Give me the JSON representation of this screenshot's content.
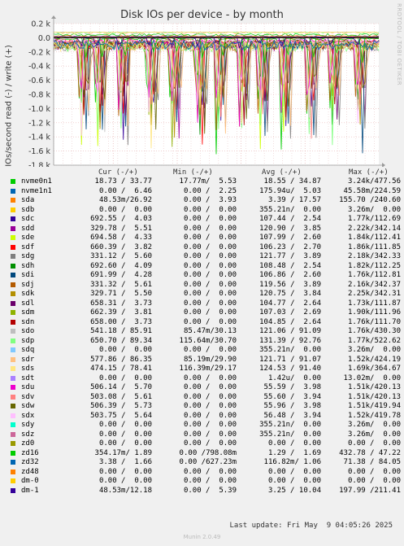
{
  "chart_data": {
    "type": "line",
    "title": "Disk IOs per device - by month",
    "ylabel": "IOs/second read (-) / write (+)",
    "side_text": "RRDTOOL / TOBI OETIKER",
    "ylim": [
      -1.8,
      0.2
    ],
    "y_ticks": [
      "0.2 k",
      "0.0",
      "-0.2 k",
      "-0.4 k",
      "-0.6 k",
      "-0.8 k",
      "-1.0 k",
      "-1.2 k",
      "-1.4 k",
      "-1.6 k",
      "-1.8 k"
    ],
    "y_tick_values": [
      0.2,
      0.0,
      -0.2,
      -0.4,
      -0.6,
      -0.8,
      -1.0,
      -1.2,
      -1.4,
      -1.6,
      -1.8
    ],
    "x_labels": [
      "Week 15",
      "Week 16",
      "Week 17",
      "Week 18",
      "Week 19"
    ],
    "x_positions": [
      0.086,
      0.283,
      0.48,
      0.676,
      0.873
    ],
    "columns": [
      "Cur (-/+)",
      "Min (-/+)",
      "Avg (-/+)",
      "Max (-/+)"
    ],
    "series": [
      {
        "name": "nvme0n1",
        "color": "#00cc00",
        "cur": "18.73 / 33.77",
        "min": "17.77m/  5.53",
        "avg": "18.55 / 34.87",
        "max": "3.24k/477.56"
      },
      {
        "name": "nvme1n1",
        "color": "#0066b3",
        "cur": " 0.00 /  6.46",
        "min": " 0.00 /  2.25",
        "avg": "175.94u/  5.03",
        "max": "45.58m/224.59"
      },
      {
        "name": "sda",
        "color": "#ff8000",
        "cur": "48.53m/26.92",
        "min": " 0.00 /  3.93",
        "avg": " 3.39 / 17.57",
        "max": "155.70 /240.60"
      },
      {
        "name": "sdb",
        "color": "#ffcc00",
        "cur": " 0.00 /  0.00",
        "min": " 0.00 /  0.00",
        "avg": "355.21n/  0.00",
        "max": "3.26m/  0.00"
      },
      {
        "name": "sdc",
        "color": "#330099",
        "cur": "692.55 /  4.03",
        "min": " 0.00 /  0.00",
        "avg": "107.44 /  2.54",
        "max": "1.77k/112.69"
      },
      {
        "name": "sdd",
        "color": "#990099",
        "cur": "329.78 /  5.51",
        "min": " 0.00 /  0.00",
        "avg": "120.90 /  3.85",
        "max": "2.22k/342.14"
      },
      {
        "name": "sde",
        "color": "#ccff00",
        "cur": "694.58 /  4.33",
        "min": " 0.00 /  0.00",
        "avg": "107.99 /  2.60",
        "max": "1.84k/112.41"
      },
      {
        "name": "sdf",
        "color": "#ff0000",
        "cur": "660.39 /  3.82",
        "min": " 0.00 /  0.00",
        "avg": "106.23 /  2.70",
        "max": "1.86k/111.85"
      },
      {
        "name": "sdg",
        "color": "#808080",
        "cur": "331.12 /  5.60",
        "min": " 0.00 /  0.00",
        "avg": "121.77 /  3.89",
        "max": "2.18k/342.33"
      },
      {
        "name": "sdh",
        "color": "#008f00",
        "cur": "692.60 /  4.09",
        "min": " 0.00 /  0.00",
        "avg": "108.48 /  2.54",
        "max": "1.82k/112.25"
      },
      {
        "name": "sdi",
        "color": "#00487d",
        "cur": "691.99 /  4.28",
        "min": " 0.00 /  0.00",
        "avg": "106.86 /  2.60",
        "max": "1.76k/112.81"
      },
      {
        "name": "sdj",
        "color": "#b35a00",
        "cur": "331.32 /  5.61",
        "min": " 0.00 /  0.00",
        "avg": "119.56 /  3.89",
        "max": "2.16k/342.37"
      },
      {
        "name": "sdk",
        "color": "#b38f00",
        "cur": "329.71 /  5.50",
        "min": " 0.00 /  0.00",
        "avg": "120.75 /  3.84",
        "max": "2.25k/342.31"
      },
      {
        "name": "sdl",
        "color": "#6b006b",
        "cur": "658.31 /  3.73",
        "min": " 0.00 /  0.00",
        "avg": "104.77 /  2.64",
        "max": "1.73k/111.87"
      },
      {
        "name": "sdm",
        "color": "#8fb300",
        "cur": "662.39 /  3.81",
        "min": " 0.00 /  0.00",
        "avg": "107.03 /  2.69",
        "max": "1.90k/111.96"
      },
      {
        "name": "sdn",
        "color": "#b30000",
        "cur": "658.00 /  3.73",
        "min": " 0.00 /  0.00",
        "avg": "104.85 /  2.64",
        "max": "1.76k/111.70"
      },
      {
        "name": "sdo",
        "color": "#bebebe",
        "cur": "541.18 / 85.91",
        "min": "85.47m/30.13",
        "avg": "121.06 / 91.09",
        "max": "1.76k/430.30"
      },
      {
        "name": "sdp",
        "color": "#80ff80",
        "cur": "650.70 / 89.34",
        "min": "115.64m/30.70",
        "avg": "131.39 / 92.76",
        "max": "1.77k/522.62"
      },
      {
        "name": "sdq",
        "color": "#80c9ff",
        "cur": " 0.00 /  0.00",
        "min": " 0.00 /  0.00",
        "avg": "355.21n/  0.00",
        "max": "3.26m/  0.00"
      },
      {
        "name": "sdr",
        "color": "#ffc080",
        "cur": "577.86 / 86.35",
        "min": "85.19m/29.90",
        "avg": "121.71 / 91.07",
        "max": "1.52k/424.19"
      },
      {
        "name": "sds",
        "color": "#ffe680",
        "cur": "474.15 / 78.41",
        "min": "116.39m/29.17",
        "avg": "124.53 / 91.40",
        "max": "1.69k/364.67"
      },
      {
        "name": "sdt",
        "color": "#aa80ff",
        "cur": " 0.00 /  0.00",
        "min": " 0.00 /  0.00",
        "avg": " 1.42u/  0.00",
        "max": "13.02m/  0.00"
      },
      {
        "name": "sdu",
        "color": "#ee00cc",
        "cur": "506.14 /  5.70",
        "min": " 0.00 /  0.00",
        "avg": "55.59 /  3.98",
        "max": "1.51k/420.13"
      },
      {
        "name": "sdv",
        "color": "#ff8080",
        "cur": "503.08 /  5.61",
        "min": " 0.00 /  0.00",
        "avg": "55.60 /  3.94",
        "max": "1.51k/420.13"
      },
      {
        "name": "sdw",
        "color": "#666600",
        "cur": "506.39 /  5.73",
        "min": " 0.00 /  0.00",
        "avg": "55.96 /  3.98",
        "max": "1.51k/419.94"
      },
      {
        "name": "sdx",
        "color": "#ffbfff",
        "cur": "503.75 /  5.64",
        "min": " 0.00 /  0.00",
        "avg": "56.48 /  3.94",
        "max": "1.52k/419.78"
      },
      {
        "name": "sdy",
        "color": "#00ffcc",
        "cur": " 0.00 /  0.00",
        "min": " 0.00 /  0.00",
        "avg": "355.21n/  0.00",
        "max": "3.26m/  0.00"
      },
      {
        "name": "sdz",
        "color": "#cc6699",
        "cur": " 0.00 /  0.00",
        "min": " 0.00 /  0.00",
        "avg": "355.21n/  0.00",
        "max": "3.26m/  0.00"
      },
      {
        "name": "zd0",
        "color": "#999900",
        "cur": " 0.00 /  0.00",
        "min": " 0.00 /  0.00",
        "avg": " 0.00 /  0.00",
        "max": " 0.00 /  0.00"
      },
      {
        "name": "zd16",
        "color": "#00cc00",
        "cur": "354.17m/ 1.89",
        "min": " 0.00 /798.08m",
        "avg": " 1.29 /  1.69",
        "max": "432.78 / 47.22"
      },
      {
        "name": "zd32",
        "color": "#0066b3",
        "cur": " 3.38 /  1.66",
        "min": " 0.00 /627.23m",
        "avg": "116.82m/ 1.06",
        "max": "71.38 / 84.05"
      },
      {
        "name": "zd48",
        "color": "#ff8000",
        "cur": " 0.00 /  0.00",
        "min": " 0.00 /  0.00",
        "avg": " 0.00 /  0.00",
        "max": " 0.00 /  0.00"
      },
      {
        "name": "dm-0",
        "color": "#ffcc00",
        "cur": " 0.00 /  0.00",
        "min": " 0.00 /  0.00",
        "avg": " 0.00 /  0.00",
        "max": " 0.00 /  0.00"
      },
      {
        "name": "dm-1",
        "color": "#330099",
        "cur": "48.53m/12.18",
        "min": " 0.00 /  5.39",
        "avg": " 3.25 / 10.04",
        "max": "197.99 /211.41"
      }
    ]
  },
  "footer": {
    "last_update": "Last update: Fri May  9 04:05:26 2025",
    "munin": "Munin 2.0.49"
  }
}
